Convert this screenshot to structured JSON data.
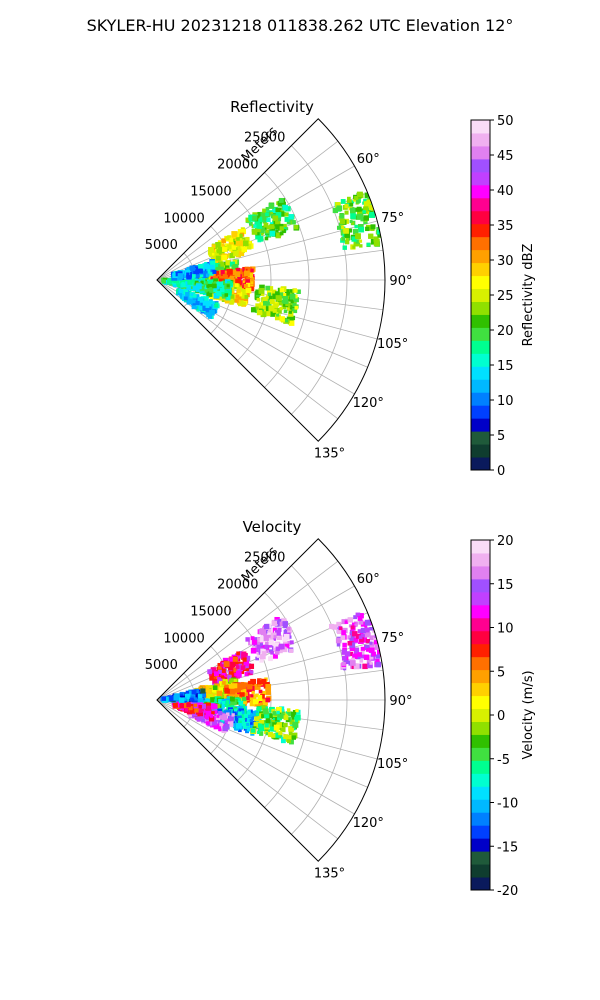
{
  "figure": {
    "suptitle": "SKYLER-HU  20231218  011838.262 UTC Elevation 12°"
  },
  "chart_data": [
    {
      "type": "heatmap",
      "projection": "polar-sector",
      "title": "Reflectivity",
      "radial_label": "Meters",
      "r_ticks": [
        5000,
        10000,
        15000,
        20000,
        25000
      ],
      "r_max": 30000,
      "theta_range_deg": [
        45,
        135
      ],
      "theta_ticks_deg": [
        60,
        75,
        90,
        105,
        120,
        135
      ],
      "grid": true,
      "colorbar": {
        "label": "Reflectivity dBZ",
        "range": [
          0,
          50
        ],
        "ticks": [
          0,
          5,
          10,
          15,
          20,
          25,
          30,
          35,
          40,
          45,
          50
        ],
        "colors": [
          "#0a1a5c",
          "#0f3d2f",
          "#1f5a3a",
          "#0000c8",
          "#0040ff",
          "#0080ff",
          "#00b8ff",
          "#00e0ff",
          "#00ffd0",
          "#00ff90",
          "#40e040",
          "#30c000",
          "#90e000",
          "#d8f000",
          "#ffff00",
          "#ffd000",
          "#ffa000",
          "#ff7000",
          "#ff2000",
          "#ff0040",
          "#ff0090",
          "#ff00ff",
          "#c040ff",
          "#a050ff",
          "#e080f0",
          "#f0b0f0",
          "#fadcf8"
        ]
      },
      "echoes": [
        {
          "range": 10500,
          "azimuth": 66,
          "value": 26
        },
        {
          "range": 17000,
          "azimuth": 63,
          "value": 20
        },
        {
          "range": 27500,
          "azimuth": 74,
          "value": 21
        },
        {
          "range": 8000,
          "azimuth": 83,
          "value": 22
        },
        {
          "range": 10000,
          "azimuth": 89,
          "value": 33
        },
        {
          "range": 9500,
          "azimuth": 100,
          "value": 27
        },
        {
          "range": 7000,
          "azimuth": 98,
          "value": 18
        },
        {
          "range": 6000,
          "azimuth": 118,
          "value": 14
        },
        {
          "range": 3500,
          "azimuth": 97,
          "value": 17
        },
        {
          "range": 5000,
          "azimuth": 78,
          "value": 12
        },
        {
          "range": 16000,
          "azimuth": 101,
          "value": 23
        }
      ]
    },
    {
      "type": "heatmap",
      "projection": "polar-sector",
      "title": "Velocity",
      "radial_label": "Meters",
      "r_ticks": [
        5000,
        10000,
        15000,
        20000,
        25000
      ],
      "r_max": 30000,
      "theta_range_deg": [
        45,
        135
      ],
      "theta_ticks_deg": [
        60,
        75,
        90,
        105,
        120,
        135
      ],
      "grid": true,
      "colorbar": {
        "label": "Velocity (m/s)",
        "range": [
          -20,
          20
        ],
        "ticks": [
          -20,
          -15,
          -10,
          -5,
          0,
          5,
          10,
          15,
          20
        ],
        "colors": [
          "#0a1a5c",
          "#0f3d2f",
          "#1f5a3a",
          "#0000c8",
          "#0040ff",
          "#0080ff",
          "#00b8ff",
          "#00e0ff",
          "#00ffd0",
          "#00ff90",
          "#40e040",
          "#30c000",
          "#90e000",
          "#d8f000",
          "#ffff00",
          "#ffd000",
          "#ffa000",
          "#ff7000",
          "#ff2000",
          "#ff0040",
          "#ff0090",
          "#ff00ff",
          "#c040ff",
          "#a050ff",
          "#e080f0",
          "#f0b0f0",
          "#fadcf8"
        ]
      },
      "echoes": [
        {
          "range": 10500,
          "azimuth": 67,
          "value": 10
        },
        {
          "range": 17000,
          "azimuth": 63,
          "value": 16
        },
        {
          "range": 27500,
          "azimuth": 74,
          "value": 14
        },
        {
          "range": 8000,
          "azimuth": 82,
          "value": 1
        },
        {
          "range": 12000,
          "azimuth": 86,
          "value": 5
        },
        {
          "range": 9000,
          "azimuth": 96,
          "value": -6
        },
        {
          "range": 11000,
          "azimuth": 104,
          "value": -10
        },
        {
          "range": 7500,
          "azimuth": 108,
          "value": 15
        },
        {
          "range": 5000,
          "azimuth": 103,
          "value": 10
        },
        {
          "range": 3500,
          "azimuth": 84,
          "value": -12
        },
        {
          "range": 16000,
          "azimuth": 101,
          "value": -3
        }
      ]
    }
  ]
}
